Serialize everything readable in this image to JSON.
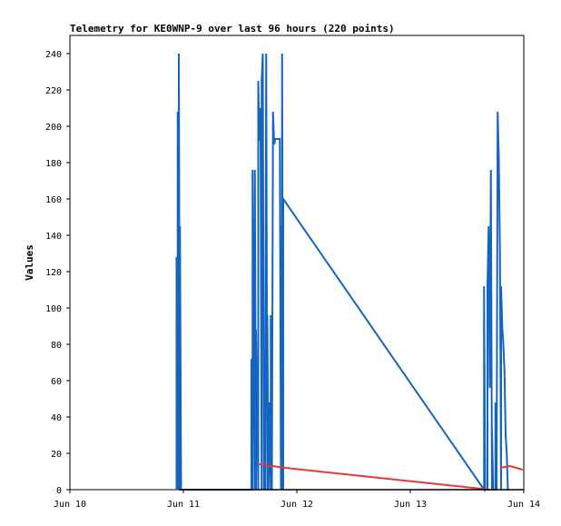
{
  "chart_data": {
    "type": "line",
    "title": "Telemetry for KE0WNP-9 over last 96 hours (220 points)",
    "xlabel": "",
    "ylabel": "Values",
    "xlim": [
      "Jun 10",
      "Jun 14"
    ],
    "ylim": [
      0,
      250
    ],
    "grid": false,
    "x_ticks": [
      "Jun 10",
      "Jun 11",
      "Jun 12",
      "Jun 13",
      "Jun 14"
    ],
    "y_ticks": [
      0,
      20,
      40,
      60,
      80,
      100,
      120,
      140,
      160,
      180,
      200,
      220,
      240
    ],
    "series": [
      {
        "color": "#1565c0",
        "points": [
          [
            0.94,
            0
          ],
          [
            0.94,
            128
          ],
          [
            0.95,
            0
          ],
          [
            0.95,
            208
          ],
          [
            0.96,
            0
          ],
          [
            0.96,
            240
          ],
          [
            0.97,
            0
          ],
          [
            0.97,
            145
          ],
          [
            0.98,
            0
          ],
          [
            1.6,
            0
          ],
          [
            1.6,
            72
          ],
          [
            1.61,
            0
          ],
          [
            1.61,
            176
          ],
          [
            1.63,
            0
          ],
          [
            1.63,
            176
          ],
          [
            1.64,
            0
          ],
          [
            1.64,
            88
          ],
          [
            1.66,
            0
          ],
          [
            1.66,
            225
          ],
          [
            1.67,
            192
          ],
          [
            1.68,
            210
          ],
          [
            1.69,
            0
          ],
          [
            1.69,
            225
          ],
          [
            1.7,
            240
          ],
          [
            1.71,
            0
          ],
          [
            1.71,
            64
          ],
          [
            1.72,
            0
          ],
          [
            1.73,
            240
          ],
          [
            1.74,
            0
          ],
          [
            1.74,
            96
          ],
          [
            1.75,
            0
          ],
          [
            1.76,
            48
          ],
          [
            1.77,
            0
          ],
          [
            1.77,
            96
          ],
          [
            1.78,
            0
          ],
          [
            1.79,
            208
          ],
          [
            1.8,
            190
          ],
          [
            1.81,
            193
          ],
          [
            1.85,
            193
          ],
          [
            1.86,
            0
          ],
          [
            1.86,
            145
          ],
          [
            1.87,
            0
          ],
          [
            1.87,
            240
          ],
          [
            1.88,
            0
          ],
          [
            1.88,
            160
          ],
          [
            3.65,
            0
          ],
          [
            3.65,
            112
          ],
          [
            3.66,
            0
          ],
          [
            3.68,
            0
          ],
          [
            3.68,
            112
          ],
          [
            3.69,
            145
          ],
          [
            3.7,
            56
          ],
          [
            3.71,
            176
          ],
          [
            3.72,
            0
          ],
          [
            3.72,
            32
          ],
          [
            3.73,
            0
          ],
          [
            3.75,
            0
          ],
          [
            3.75,
            48
          ],
          [
            3.76,
            0
          ],
          [
            3.77,
            208
          ],
          [
            3.78,
            182
          ],
          [
            3.79,
            130
          ],
          [
            3.8,
            0
          ],
          [
            3.8,
            112
          ],
          [
            3.81,
            90
          ],
          [
            3.82,
            80
          ],
          [
            3.83,
            65
          ],
          [
            3.84,
            30
          ],
          [
            3.85,
            20
          ],
          [
            3.86,
            0
          ],
          [
            3.87,
            0
          ]
        ]
      },
      {
        "color": "#e53935",
        "points": [
          [
            1.67,
            14
          ],
          [
            1.9,
            12
          ],
          [
            3.7,
            0
          ]
        ]
      },
      {
        "color": "#e53935",
        "points": [
          [
            3.79,
            12
          ],
          [
            3.88,
            13
          ],
          [
            3.99,
            11
          ]
        ]
      },
      {
        "color": "#000000",
        "points": [
          [
            0.96,
            0
          ],
          [
            4.0,
            0
          ]
        ]
      }
    ]
  }
}
